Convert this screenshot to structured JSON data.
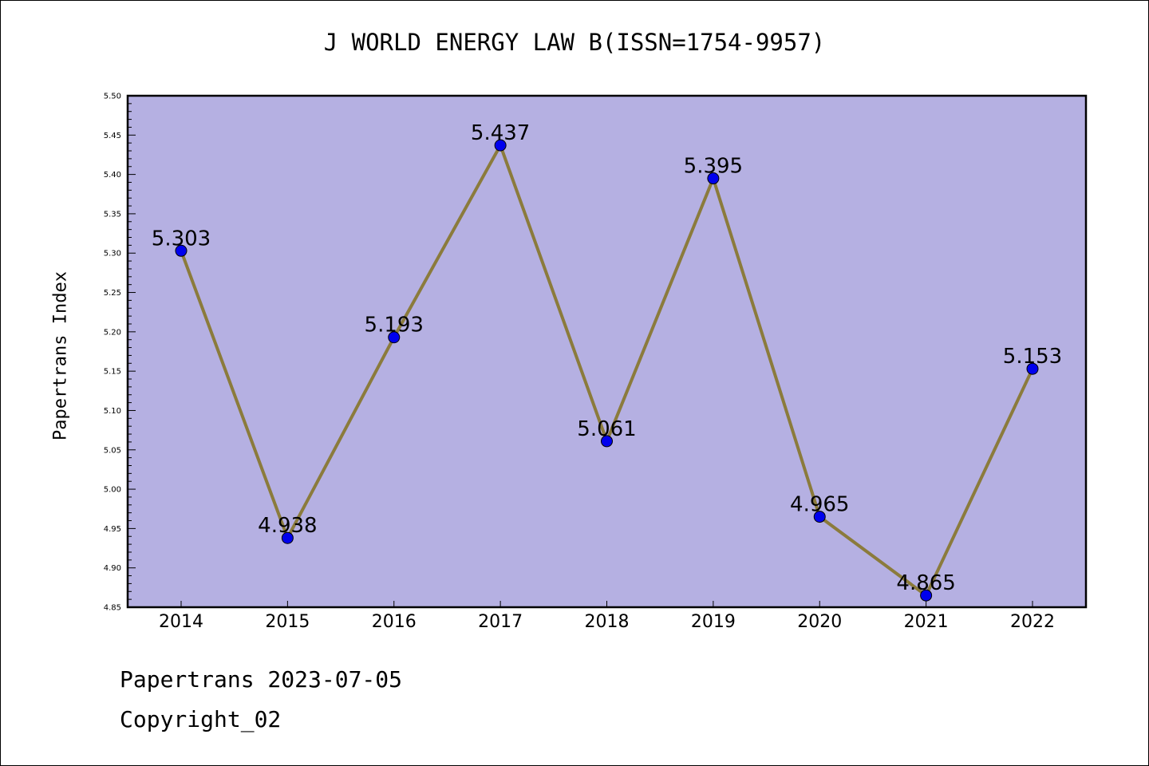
{
  "chart_data": {
    "type": "line",
    "title": "J WORLD ENERGY LAW B(ISSN=1754-9957)",
    "xlabel": "",
    "ylabel": "Papertrans Index",
    "categories": [
      "2014",
      "2015",
      "2016",
      "2017",
      "2018",
      "2019",
      "2020",
      "2021",
      "2022"
    ],
    "values": [
      5.303,
      4.938,
      5.193,
      5.437,
      5.061,
      5.395,
      4.965,
      4.865,
      5.153
    ],
    "data_labels": [
      "5.303",
      "4.938",
      "5.193",
      "5.437",
      "5.061",
      "5.395",
      "4.965",
      "4.865",
      "5.153"
    ],
    "ylim": [
      4.85,
      5.5
    ],
    "yticks": [
      "4.85",
      "4.90",
      "4.95",
      "5.00",
      "5.05",
      "5.10",
      "5.15",
      "5.20",
      "5.25",
      "5.30",
      "5.35",
      "5.40",
      "5.45",
      "5.50"
    ],
    "grid": false,
    "legend": "none",
    "colors": {
      "plot_background": "#b5b0e2",
      "line": "#8b7b3c",
      "marker": "#0000ee"
    }
  },
  "footer": {
    "source": "Papertrans 2023-07-05",
    "copyright": "Copyright_02"
  }
}
